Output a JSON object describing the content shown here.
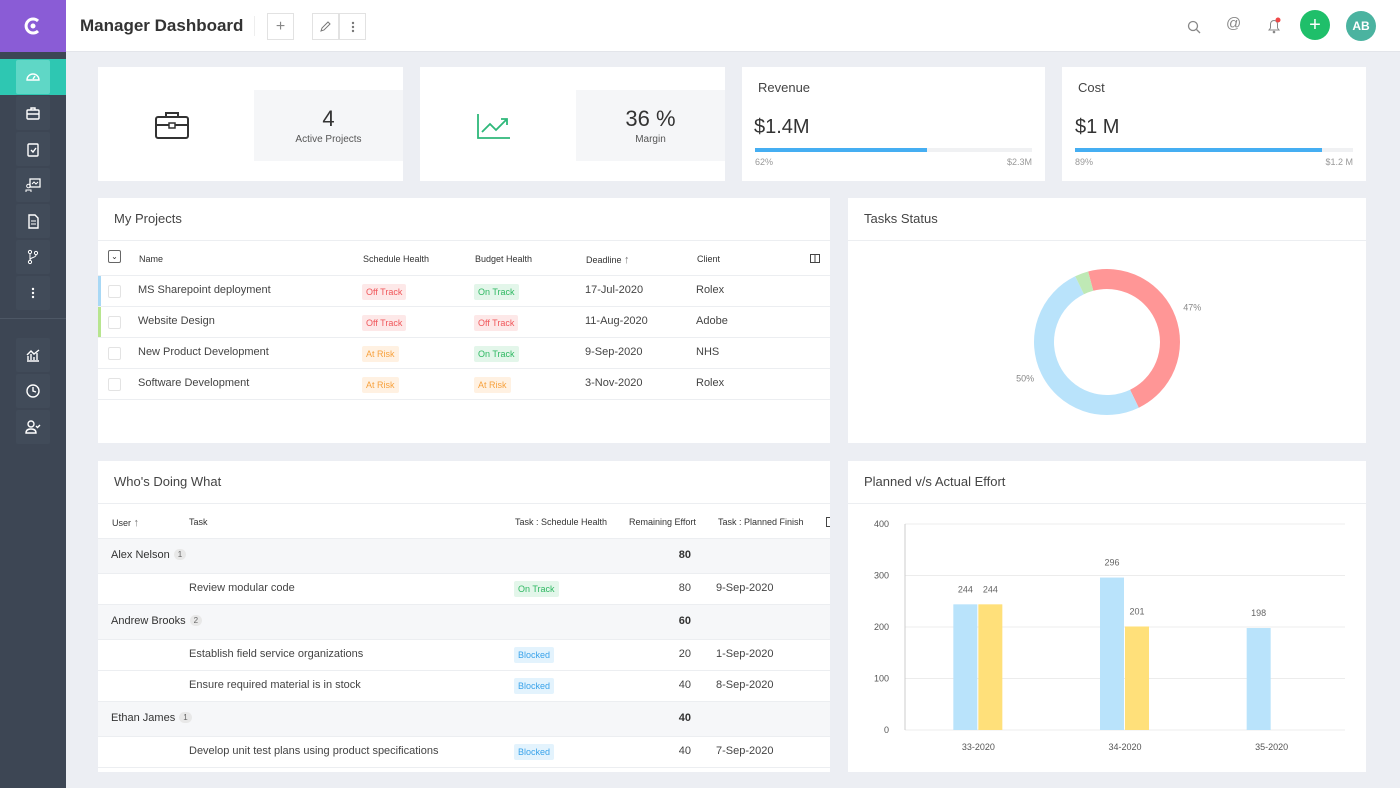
{
  "header": {
    "title": "Manager Dashboard",
    "avatar_initials": "AB"
  },
  "colors": {
    "accent": "#2ec7b2",
    "logo": "#8a5cd6",
    "add": "#1fbf6a",
    "avatar": "#4bb3a0",
    "revenue_bar": "#45aef2"
  },
  "sidebar": {
    "items": [
      "dashboard-icon",
      "briefcase-icon",
      "clipboard-check-icon",
      "presentation-icon",
      "document-icon",
      "branch-icon",
      "more-vertical-icon",
      "analytics-icon",
      "clock-icon",
      "user-check-icon"
    ]
  },
  "kpis": {
    "active_projects": {
      "value": "4",
      "label": "Active Projects"
    },
    "margin": {
      "value": "36 %",
      "label": "Margin"
    },
    "revenue": {
      "title": "Revenue",
      "value": "$1.4M",
      "percent_label": "62%",
      "progress": 62,
      "max": "$2.3M"
    },
    "cost": {
      "title": "Cost",
      "value": "$1 M",
      "percent_label": "89%",
      "progress": 89,
      "max": "$1.2 M"
    }
  },
  "projects": {
    "title": "My Projects",
    "columns": [
      "Name",
      "Schedule Health",
      "Budget Health",
      "Deadline",
      "Client"
    ],
    "rows": [
      {
        "name": "MS Sharepoint deployment",
        "schedule": "Off Track",
        "budget": "On Track",
        "deadline": "17-Jul-2020",
        "client": "Rolex",
        "marker": "#a8d8f5"
      },
      {
        "name": "Website Design",
        "schedule": "Off Track",
        "budget": "Off Track",
        "deadline": "11-Aug-2020",
        "client": "Adobe",
        "marker": "#b7e58f"
      },
      {
        "name": "New Product Development",
        "schedule": "At Risk",
        "budget": "On Track",
        "deadline": "9-Sep-2020",
        "client": "NHS",
        "marker": ""
      },
      {
        "name": "Software Development",
        "schedule": "At Risk",
        "budget": "At Risk",
        "deadline": "3-Nov-2020",
        "client": "Rolex",
        "marker": ""
      }
    ]
  },
  "tasks_status": {
    "title": "Tasks Status",
    "slices": [
      {
        "value": 47,
        "label": "47%",
        "color": "#ff9696"
      },
      {
        "value": 50,
        "label": "50%",
        "color": "#b9e3fb"
      },
      {
        "value": 3,
        "label": "",
        "color": "#bfe9b5"
      }
    ]
  },
  "who": {
    "title": "Who's Doing What",
    "columns": [
      "User",
      "Task",
      "Task : Schedule Health",
      "Remaining Effort",
      "Task : Planned Finish"
    ],
    "rows": [
      {
        "type": "group",
        "user": "Alex Nelson",
        "count": "1",
        "effort": "80"
      },
      {
        "type": "task",
        "task": "Review modular code",
        "health": "On Track",
        "effort": "80",
        "finish": "9-Sep-2020"
      },
      {
        "type": "group",
        "user": "Andrew Brooks",
        "count": "2",
        "effort": "60"
      },
      {
        "type": "task",
        "task": "Establish field service organizations",
        "health": "Blocked",
        "effort": "20",
        "finish": "1-Sep-2020"
      },
      {
        "type": "task",
        "task": "Ensure required material is in stock",
        "health": "Blocked",
        "effort": "40",
        "finish": "8-Sep-2020"
      },
      {
        "type": "group",
        "user": "Ethan James",
        "count": "1",
        "effort": "40"
      },
      {
        "type": "task",
        "task": "Develop unit test plans using product specifications",
        "health": "Blocked",
        "effort": "40",
        "finish": "7-Sep-2020"
      }
    ]
  },
  "chart_data": {
    "type": "bar",
    "title": "Planned v/s Actual Effort",
    "categories": [
      "33-2020",
      "34-2020",
      "35-2020"
    ],
    "series": [
      {
        "values": [
          244,
          296,
          198
        ],
        "color": "#b9e3fb"
      },
      {
        "values": [
          244,
          201,
          null
        ],
        "color": "#ffe07a"
      }
    ],
    "ylim": [
      0,
      400
    ],
    "yticks": [
      0,
      100,
      200,
      300,
      400
    ],
    "grid": true
  }
}
